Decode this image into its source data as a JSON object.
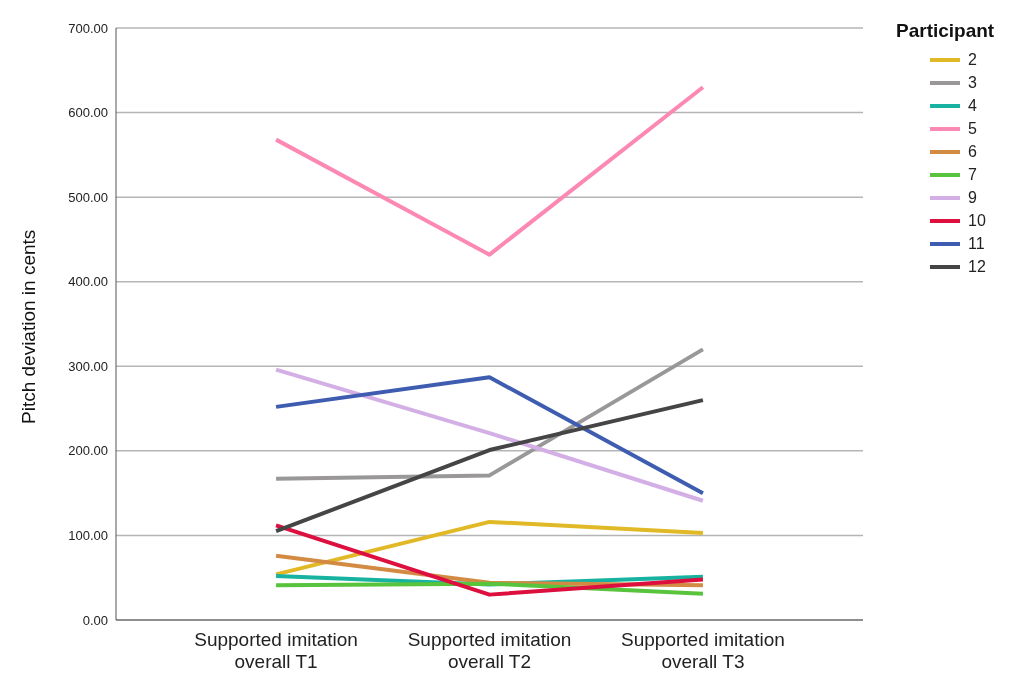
{
  "chart_data": {
    "type": "line",
    "ylabel": "Pitch deviation in cents",
    "legend_title": "Participant",
    "categories": [
      "Supported imitation overall T1",
      "Supported imitation overall T2",
      "Supported imitation overall T3"
    ],
    "series": [
      {
        "name": "2",
        "color": "#e1b826",
        "values": [
          54,
          116,
          103
        ]
      },
      {
        "name": "3",
        "color": "#999797",
        "values": [
          167,
          171,
          320
        ]
      },
      {
        "name": "4",
        "color": "#17b3a0",
        "values": [
          52,
          42,
          51
        ]
      },
      {
        "name": "5",
        "color": "#fb89b3",
        "values": [
          568,
          432,
          630
        ]
      },
      {
        "name": "6",
        "color": "#d38b44",
        "values": [
          76,
          44,
          41
        ]
      },
      {
        "name": "7",
        "color": "#58c33c",
        "values": [
          41,
          43,
          31
        ]
      },
      {
        "name": "9",
        "color": "#d3afe6",
        "values": [
          296,
          221,
          141
        ]
      },
      {
        "name": "10",
        "color": "#dc0f3f",
        "values": [
          112,
          30,
          48
        ]
      },
      {
        "name": "11",
        "color": "#3e5db0",
        "values": [
          252,
          287,
          150
        ]
      },
      {
        "name": "12",
        "color": "#454545",
        "values": [
          105,
          201,
          260
        ]
      }
    ],
    "ylim": [
      0,
      700
    ],
    "yticks": [
      {
        "value": 0,
        "label": "0.00"
      },
      {
        "value": 100,
        "label": "100.00"
      },
      {
        "value": 200,
        "label": "200.00"
      },
      {
        "value": 300,
        "label": "300.00"
      },
      {
        "value": 400,
        "label": "400.00"
      },
      {
        "value": 500,
        "label": "500.00"
      },
      {
        "value": 600,
        "label": "600.00"
      },
      {
        "value": 700,
        "label": "700.00"
      }
    ],
    "grid": "y",
    "legend": "top right",
    "marker": "none",
    "line_style": "solid"
  }
}
